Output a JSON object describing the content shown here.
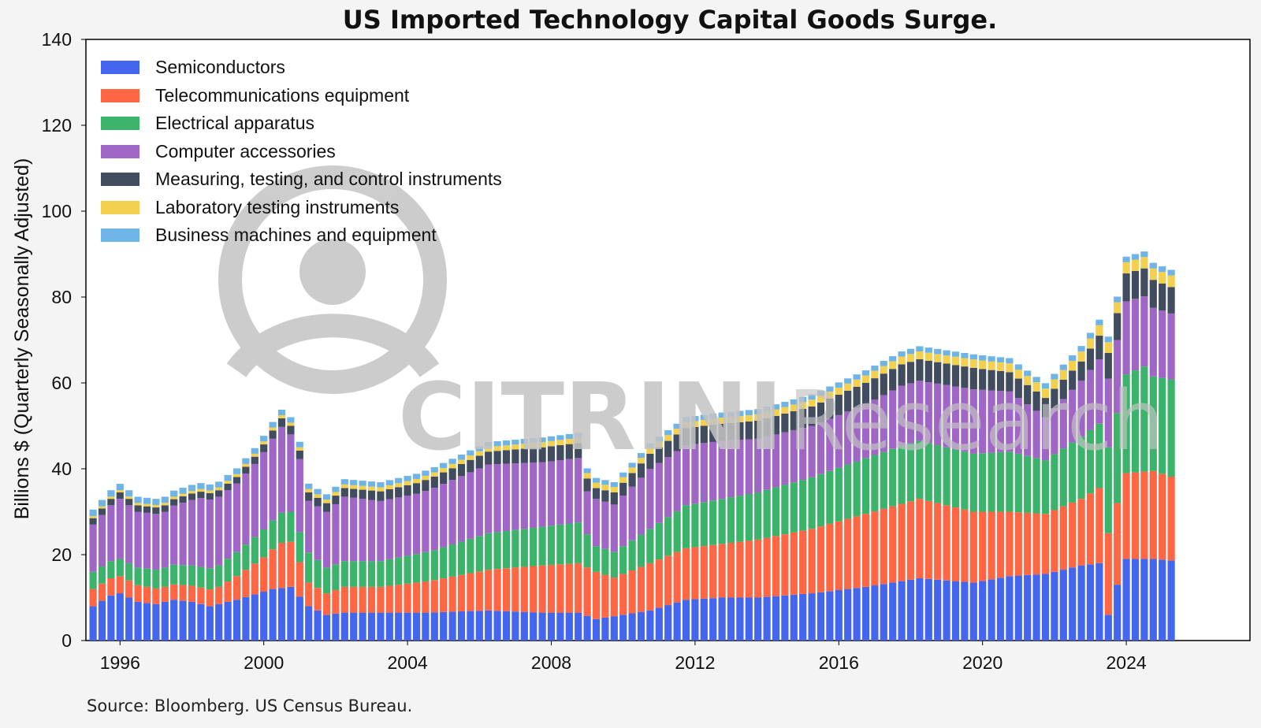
{
  "chart_data": {
    "type": "bar",
    "stacked": true,
    "title": "US Imported Technology Capital Goods Surge.",
    "ylabel": "Billions $ (Quarterly Seasonally Adjusted)",
    "xlabel": "",
    "ylim": [
      0,
      140
    ],
    "yticks": [
      0,
      20,
      40,
      60,
      80,
      100,
      120,
      140
    ],
    "xticks": [
      "1996",
      "2000",
      "2004",
      "2008",
      "2012",
      "2016",
      "2020",
      "2024"
    ],
    "grid": false,
    "legend_position": "top-left",
    "x_start": "1995-Q2",
    "x_end": "2025-Q2",
    "series": [
      {
        "name": "Semiconductors",
        "color": "#4466ee",
        "anchors": [
          [
            0,
            8
          ],
          [
            2,
            10.5
          ],
          [
            3,
            11
          ],
          [
            5,
            9
          ],
          [
            7,
            8.5
          ],
          [
            9,
            9.5
          ],
          [
            11,
            9
          ],
          [
            13,
            8
          ],
          [
            16,
            9.5
          ],
          [
            20,
            12
          ],
          [
            22,
            12.5
          ],
          [
            24,
            8
          ],
          [
            26,
            6
          ],
          [
            28,
            6.5
          ],
          [
            32,
            6.5
          ],
          [
            37,
            6.5
          ],
          [
            44,
            7
          ],
          [
            50,
            6.5
          ],
          [
            54,
            6.5
          ],
          [
            56,
            5
          ],
          [
            62,
            7
          ],
          [
            66,
            9.5
          ],
          [
            70,
            10
          ],
          [
            74,
            10
          ],
          [
            80,
            11
          ],
          [
            86,
            12.5
          ],
          [
            92,
            14.5
          ],
          [
            98,
            13.5
          ],
          [
            102,
            15
          ],
          [
            106,
            15.5
          ],
          [
            110,
            17.5
          ],
          [
            112,
            18
          ],
          [
            113,
            6
          ],
          [
            114,
            13
          ],
          [
            115,
            19
          ],
          [
            118,
            19
          ],
          [
            121,
            18.5
          ],
          [
            125,
            22
          ],
          [
            126,
            21
          ],
          [
            128,
            18.5
          ]
        ]
      },
      {
        "name": "Telecommunications equipment",
        "color": "#ff6644",
        "anchors": [
          [
            0,
            4
          ],
          [
            4,
            4
          ],
          [
            8,
            3.5
          ],
          [
            14,
            4
          ],
          [
            16,
            5.5
          ],
          [
            19,
            8
          ],
          [
            21,
            10.5
          ],
          [
            22,
            10.5
          ],
          [
            24,
            5.5
          ],
          [
            26,
            5
          ],
          [
            28,
            6
          ],
          [
            32,
            6
          ],
          [
            38,
            7.5
          ],
          [
            44,
            9.5
          ],
          [
            50,
            11
          ],
          [
            54,
            11.5
          ],
          [
            56,
            11
          ],
          [
            58,
            9
          ],
          [
            62,
            11
          ],
          [
            66,
            12
          ],
          [
            70,
            12.5
          ],
          [
            74,
            13.5
          ],
          [
            80,
            15
          ],
          [
            86,
            17
          ],
          [
            90,
            18
          ],
          [
            92,
            18.5
          ],
          [
            98,
            16.5
          ],
          [
            102,
            15
          ],
          [
            106,
            14
          ],
          [
            110,
            15.5
          ],
          [
            112,
            17.5
          ],
          [
            113,
            19
          ],
          [
            114,
            19
          ],
          [
            115,
            20
          ],
          [
            118,
            20.5
          ],
          [
            121,
            19
          ],
          [
            125,
            22
          ],
          [
            126,
            22
          ],
          [
            128,
            28
          ]
        ]
      },
      {
        "name": "Electrical apparatus",
        "color": "#3bb36b",
        "anchors": [
          [
            0,
            4
          ],
          [
            4,
            4
          ],
          [
            8,
            4.5
          ],
          [
            14,
            5
          ],
          [
            19,
            6.5
          ],
          [
            21,
            7
          ],
          [
            22,
            7
          ],
          [
            24,
            7
          ],
          [
            26,
            6
          ],
          [
            28,
            6
          ],
          [
            32,
            6
          ],
          [
            38,
            7
          ],
          [
            44,
            8.5
          ],
          [
            50,
            9
          ],
          [
            54,
            9.5
          ],
          [
            56,
            6
          ],
          [
            58,
            6
          ],
          [
            62,
            8
          ],
          [
            66,
            10
          ],
          [
            70,
            10.5
          ],
          [
            74,
            11
          ],
          [
            80,
            12
          ],
          [
            86,
            13
          ],
          [
            90,
            13.5
          ],
          [
            92,
            13.5
          ],
          [
            98,
            13.5
          ],
          [
            102,
            14
          ],
          [
            106,
            12.5
          ],
          [
            110,
            14.5
          ],
          [
            112,
            15
          ],
          [
            113,
            20
          ],
          [
            114,
            21
          ],
          [
            115,
            23
          ],
          [
            117,
            24.5
          ],
          [
            118,
            22
          ],
          [
            121,
            23
          ],
          [
            125,
            26
          ],
          [
            126,
            27
          ],
          [
            128,
            28
          ]
        ]
      },
      {
        "name": "Computer accessories",
        "color": "#a066c6",
        "anchors": [
          [
            0,
            11
          ],
          [
            2,
            13
          ],
          [
            3,
            14
          ],
          [
            5,
            13
          ],
          [
            8,
            13
          ],
          [
            12,
            16
          ],
          [
            14,
            16
          ],
          [
            16,
            16
          ],
          [
            18,
            17
          ],
          [
            19,
            18
          ],
          [
            20,
            19
          ],
          [
            21,
            20
          ],
          [
            22,
            18
          ],
          [
            23,
            17
          ],
          [
            24,
            12
          ],
          [
            26,
            13
          ],
          [
            28,
            15
          ],
          [
            32,
            14
          ],
          [
            36,
            14
          ],
          [
            40,
            15
          ],
          [
            44,
            16
          ],
          [
            50,
            15
          ],
          [
            54,
            15
          ],
          [
            55,
            10
          ],
          [
            56,
            11
          ],
          [
            58,
            11
          ],
          [
            62,
            14
          ],
          [
            66,
            14
          ],
          [
            70,
            13.5
          ],
          [
            74,
            12.5
          ],
          [
            80,
            12
          ],
          [
            86,
            12.5
          ],
          [
            90,
            14
          ],
          [
            92,
            14
          ],
          [
            98,
            15
          ],
          [
            102,
            14
          ],
          [
            106,
            10
          ],
          [
            110,
            13
          ],
          [
            112,
            15
          ],
          [
            113,
            16
          ],
          [
            114,
            17
          ],
          [
            115,
            17
          ],
          [
            118,
            16
          ],
          [
            121,
            15
          ],
          [
            123,
            18
          ],
          [
            125,
            28
          ],
          [
            126,
            28
          ],
          [
            128,
            34
          ]
        ]
      },
      {
        "name": "Measuring, testing, and control instruments",
        "color": "#414d5e",
        "anchors": [
          [
            0,
            1.5
          ],
          [
            8,
            1.5
          ],
          [
            16,
            1.5
          ],
          [
            21,
            2
          ],
          [
            24,
            2
          ],
          [
            28,
            2
          ],
          [
            36,
            2.5
          ],
          [
            44,
            3
          ],
          [
            50,
            3.5
          ],
          [
            54,
            3.5
          ],
          [
            56,
            2.5
          ],
          [
            62,
            3.5
          ],
          [
            66,
            4
          ],
          [
            70,
            4
          ],
          [
            80,
            4.5
          ],
          [
            86,
            5
          ],
          [
            92,
            5
          ],
          [
            98,
            5
          ],
          [
            102,
            4.5
          ],
          [
            106,
            4.5
          ],
          [
            110,
            4.5
          ],
          [
            112,
            5.5
          ],
          [
            113,
            6
          ],
          [
            115,
            6.5
          ],
          [
            118,
            6.5
          ],
          [
            121,
            6
          ],
          [
            123,
            6
          ],
          [
            125,
            6.5
          ],
          [
            126,
            7
          ],
          [
            128,
            7
          ]
        ]
      },
      {
        "name": "Laboratory testing instruments",
        "color": "#f3d050",
        "anchors": [
          [
            0,
            0.5
          ],
          [
            10,
            0.6
          ],
          [
            20,
            0.7
          ],
          [
            30,
            0.9
          ],
          [
            40,
            1
          ],
          [
            50,
            1.2
          ],
          [
            60,
            1.3
          ],
          [
            70,
            1.4
          ],
          [
            80,
            1.6
          ],
          [
            90,
            1.8
          ],
          [
            100,
            2
          ],
          [
            110,
            2.3
          ],
          [
            115,
            2.6
          ],
          [
            120,
            2.7
          ],
          [
            125,
            2.9
          ],
          [
            128,
            2.8
          ]
        ]
      },
      {
        "name": "Business machines and equipment",
        "color": "#6fb4e6",
        "anchors": [
          [
            0,
            1.5
          ],
          [
            10,
            1.4
          ],
          [
            20,
            1.3
          ],
          [
            30,
            1.2
          ],
          [
            40,
            1.2
          ],
          [
            50,
            1.1
          ],
          [
            60,
            1.1
          ],
          [
            70,
            1.2
          ],
          [
            80,
            1.2
          ],
          [
            90,
            1.2
          ],
          [
            100,
            1.2
          ],
          [
            110,
            1.3
          ],
          [
            120,
            1.3
          ],
          [
            128,
            1.3
          ]
        ]
      }
    ]
  },
  "footer": {
    "source": "Source: Bloomberg. US Census Bureau."
  },
  "watermark": {
    "text_bold": "CITRINI",
    "text_light": "Research"
  }
}
